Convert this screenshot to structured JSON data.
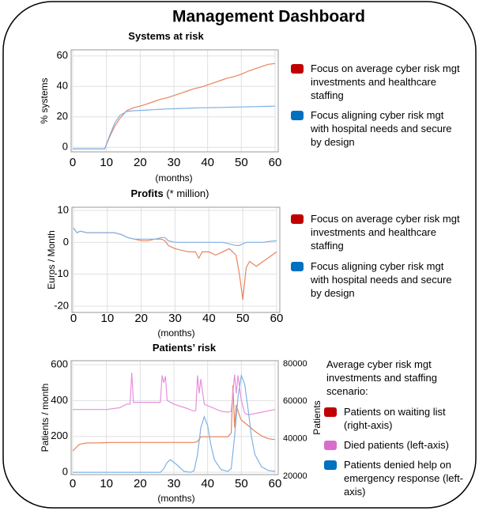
{
  "title": "Management Dashboard",
  "chart_data": [
    {
      "type": "line",
      "title": "Systems at risk",
      "ylabel": "% systems",
      "xlabel": "(months)",
      "xlim": [
        0,
        60
      ],
      "xticks": [
        0,
        10,
        20,
        30,
        40,
        50,
        60
      ],
      "ylim": [
        -3,
        64
      ],
      "yticks": [
        0,
        20,
        40,
        60
      ],
      "grid": true,
      "x": [
        0,
        2,
        4,
        6,
        8,
        9.5,
        11,
        12.5,
        14,
        16,
        18,
        20,
        22,
        24,
        26,
        28,
        30,
        32,
        34,
        36,
        38,
        40,
        42,
        44,
        46,
        48,
        50,
        52,
        54,
        56,
        58,
        60
      ],
      "series": [
        {
          "name": "Focus on average cyber risk mgt investments and  healthcare staffing",
          "color": "#e8845f",
          "legend_color": "#c00000",
          "values": [
            -1,
            -1,
            -1,
            -1,
            -1,
            -1,
            7,
            14,
            19,
            24,
            26,
            27,
            28.5,
            30,
            31.5,
            32.5,
            34,
            35.5,
            37,
            38.5,
            39.5,
            41,
            42.5,
            44,
            45.5,
            46.5,
            48,
            50,
            51.5,
            53,
            54.5,
            55
          ]
        },
        {
          "name": "Focus aligning cyber risk mgt with hospital needs and secure by design",
          "color": "#7fb2e5",
          "legend_color": "#0070c0",
          "values": [
            -1,
            -1,
            -1,
            -1,
            -1,
            -1,
            8,
            16,
            21,
            23.5,
            24,
            24.2,
            24.5,
            24.7,
            25,
            25.2,
            25.3,
            25.5,
            25.6,
            25.8,
            26,
            26,
            26.1,
            26.2,
            26.3,
            26.4,
            26.5,
            26.6,
            26.7,
            26.8,
            26.9,
            27
          ]
        }
      ]
    },
    {
      "type": "line",
      "title": "Profits",
      "subtitle": "(* million)",
      "ylabel": "Euros / Month",
      "xlabel": "(months)",
      "xlim": [
        0,
        60
      ],
      "xticks": [
        0,
        10,
        20,
        30,
        40,
        50,
        60
      ],
      "ylim": [
        -22,
        11
      ],
      "yticks": [
        10,
        0,
        -10,
        -20
      ],
      "grid": true,
      "x": [
        0,
        1,
        2,
        4,
        6,
        8,
        10,
        12,
        14,
        16,
        18,
        20,
        22,
        24,
        26,
        27,
        28,
        30,
        32,
        34,
        36,
        37,
        38,
        40,
        42,
        44,
        46,
        48,
        49,
        50,
        51,
        52,
        54,
        56,
        58,
        60
      ],
      "series": [
        {
          "name": "Focus on average cyber risk mgt investments and  healthcare staffing",
          "color": "#e8845f",
          "legend_color": "#c00000",
          "values": [
            4.5,
            3,
            3.5,
            3,
            3,
            3,
            3,
            3,
            2.5,
            1.5,
            1,
            0.5,
            0.5,
            1,
            1,
            0.5,
            -1,
            -2,
            -2.5,
            -3,
            -3,
            -5,
            -3,
            -3,
            -4,
            -3,
            -2,
            -4,
            -10,
            -18,
            -8,
            -6,
            -7.5,
            -6,
            -4.5,
            -3
          ]
        },
        {
          "name": "Focus aligning cyber risk mgt with hospital needs and secure by design",
          "color": "#7fb2e5",
          "legend_color": "#0070c0",
          "values": [
            4.5,
            3,
            3.5,
            3,
            3,
            3,
            3,
            3,
            2.5,
            1.5,
            1,
            1,
            1,
            1,
            1.5,
            1.5,
            0.5,
            0,
            0,
            0,
            0,
            0,
            0,
            0,
            0,
            0,
            -0.5,
            -1,
            -1,
            -0.5,
            0,
            0,
            0,
            0,
            0.3,
            0.5
          ]
        }
      ]
    },
    {
      "type": "line",
      "title": "Patients’ risk",
      "ylabel": "Patients / month",
      "y2label": "Patients",
      "xlabel": "(months)",
      "legend_title": "Average cyber risk mgt investments and staffing scenario:",
      "xlim": [
        0,
        60
      ],
      "xticks": [
        0,
        10,
        20,
        30,
        40,
        50,
        60
      ],
      "ylim": [
        -13,
        622
      ],
      "yticks": [
        0,
        200,
        400,
        600
      ],
      "y2lim": [
        20800,
        81700
      ],
      "y2ticks": [
        20000,
        40000,
        60000,
        80000
      ],
      "grid": true,
      "series": [
        {
          "name": "Patients on waiting list (right-axis)",
          "color": "#e8845f",
          "legend_color": "#c00000",
          "axis": "y2",
          "x": [
            0,
            2,
            4,
            8,
            12,
            16,
            20,
            24,
            28,
            32,
            36,
            37,
            38,
            40,
            44,
            46,
            47,
            47.5,
            48,
            48.5,
            49.5,
            50,
            52,
            54,
            56,
            58,
            60
          ],
          "values": [
            33500,
            37000,
            37700,
            37800,
            38000,
            38000,
            38000,
            38000,
            38000,
            38000,
            38000,
            38500,
            41000,
            41000,
            41000,
            41000,
            43000,
            68500,
            46000,
            58000,
            52000,
            50000,
            47000,
            44000,
            41500,
            40000,
            39500
          ]
        },
        {
          "name": "Died patients (left-axis)",
          "color": "#e891dc",
          "legend_color": "#d86ecc",
          "x": [
            0,
            10,
            14,
            16,
            17,
            17.5,
            18,
            20,
            26,
            26.5,
            27,
            27.5,
            28,
            30,
            34,
            36,
            36.5,
            37,
            37.5,
            38,
            39,
            44,
            46,
            47,
            48,
            48.5,
            49,
            50,
            51,
            52,
            56,
            60
          ],
          "values": [
            350,
            350,
            360,
            380,
            380,
            555,
            390,
            390,
            390,
            540,
            500,
            535,
            400,
            380,
            355,
            340,
            345,
            540,
            440,
            520,
            380,
            340,
            335,
            340,
            545,
            440,
            540,
            400,
            330,
            320,
            335,
            350
          ]
        },
        {
          "name": "Patients denied help on emergency response (left-axis)",
          "color": "#7fb2e5",
          "legend_color": "#0070c0",
          "x": [
            0,
            26,
            27,
            28,
            29,
            31,
            33,
            35,
            36,
            37,
            38,
            39,
            40,
            41,
            42,
            44,
            46,
            47,
            48,
            49,
            50,
            51,
            52,
            53,
            54,
            56,
            58,
            60
          ],
          "values": [
            0,
            0,
            20,
            55,
            70,
            40,
            5,
            0,
            10,
            100,
            250,
            310,
            260,
            150,
            70,
            15,
            5,
            20,
            200,
            420,
            540,
            490,
            350,
            200,
            100,
            30,
            10,
            5
          ]
        }
      ]
    }
  ]
}
